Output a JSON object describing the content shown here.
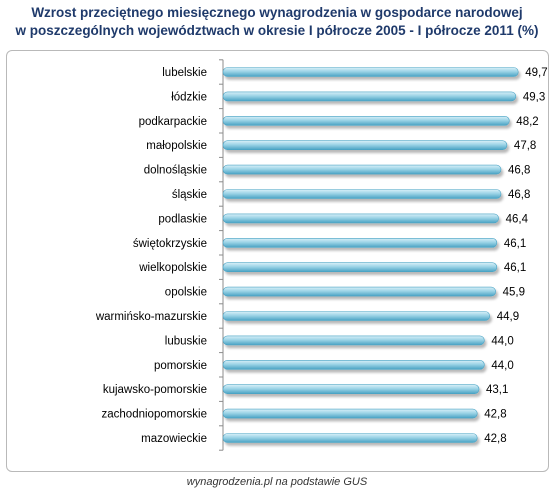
{
  "title": {
    "line1": "Wzrost przeciętnego miesięcznego wynagrodzenia w gospodarce narodowej",
    "line2": "w poszczególnych województwach w okresie I półrocze 2005 - I półrocze 2011 (%)"
  },
  "source": "wynagrodzenia.pl na podstawie GUS",
  "colors": {
    "bar_fill": "#9bd3e6",
    "bar_dark": "#4aa3c4",
    "axis": "#8c8c8c",
    "title": "#1f3a6b"
  },
  "chart_data": {
    "type": "bar",
    "orientation": "horizontal",
    "title": "",
    "xlabel": "",
    "ylabel": "",
    "xlim": [
      0,
      50
    ],
    "grid": false,
    "categories": [
      "lubelskie",
      "łódzkie",
      "podkarpackie",
      "małopolskie",
      "dolnośląskie",
      "śląskie",
      "podlaskie",
      "świętokrzyskie",
      "wielkopolskie",
      "opolskie",
      "warmińsko-mazurskie",
      "lubuskie",
      "pomorskie",
      "kujawsko-pomorskie",
      "zachodniopomorskie",
      "mazowieckie"
    ],
    "values": [
      49.7,
      49.3,
      48.2,
      47.8,
      46.8,
      46.8,
      46.4,
      46.1,
      46.1,
      45.9,
      44.9,
      44.0,
      44.0,
      43.1,
      42.8,
      42.8
    ],
    "value_labels": [
      "49,7",
      "49,3",
      "48,2",
      "47,8",
      "46,8",
      "46,8",
      "46,4",
      "46,1",
      "46,1",
      "45,9",
      "44,9",
      "44,0",
      "44,0",
      "43,1",
      "42,8",
      "42,8"
    ]
  }
}
